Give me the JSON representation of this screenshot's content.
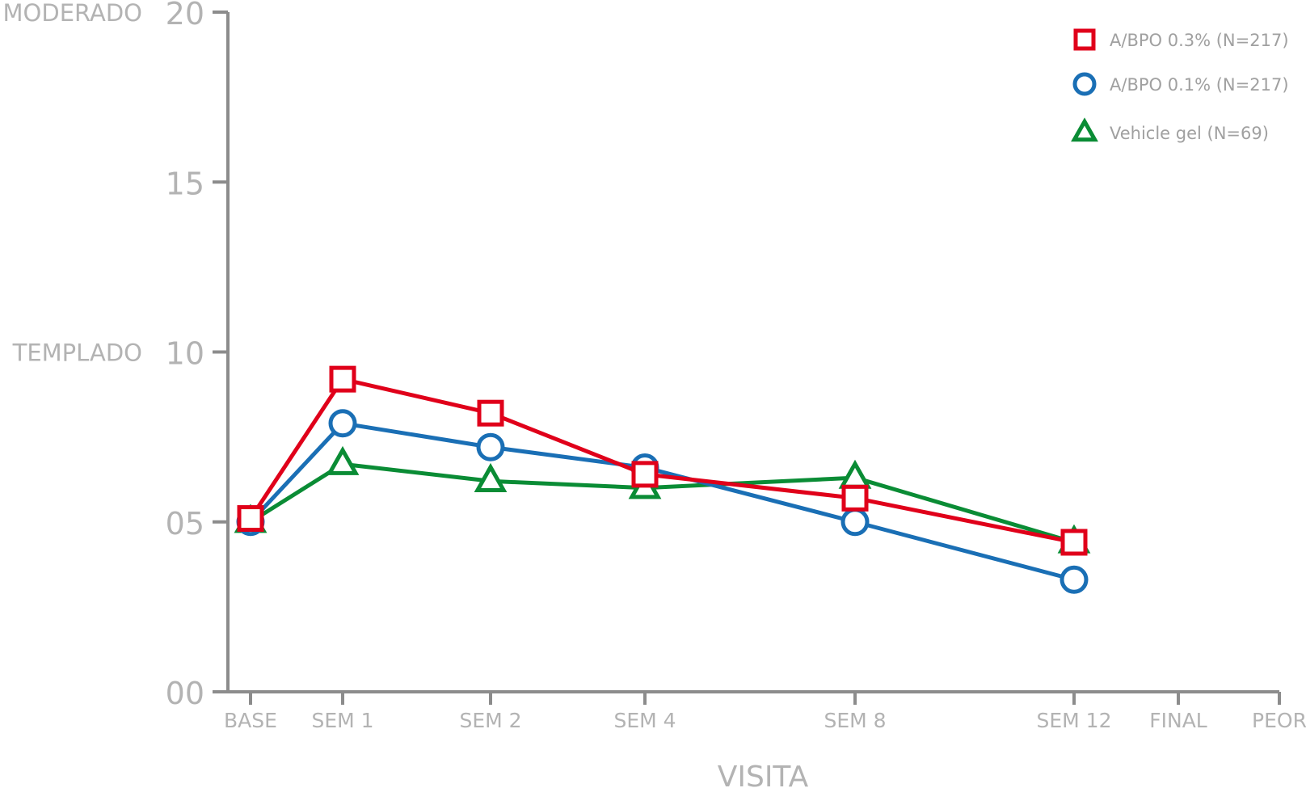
{
  "chart_data": {
    "type": "line",
    "xlabel": "VISITA",
    "categories": [
      "BASE",
      "SEM 1",
      "SEM 2",
      "SEM 4",
      "SEM 8",
      "SEM 12",
      "FINAL",
      "PEOR"
    ],
    "y_ticks": [
      "00",
      "05",
      "10",
      "15",
      "20"
    ],
    "y_tick_values": [
      0,
      5,
      10,
      15,
      20
    ],
    "ylim": [
      0,
      20
    ],
    "y_side_labels": [
      {
        "text": "MODERADO",
        "value": 20
      },
      {
        "text": "TEMPLADO",
        "value": 10
      }
    ],
    "grid": false,
    "legend_position": "top-right",
    "series": [
      {
        "name": "A/BPO 0.3% (N=217)",
        "marker": "square",
        "color": "#e0001a",
        "x": [
          "BASE",
          "SEM 1",
          "SEM 2",
          "SEM 4",
          "SEM 8",
          "SEM 12"
        ],
        "values": [
          5.1,
          9.2,
          8.2,
          6.4,
          5.7,
          4.4
        ]
      },
      {
        "name": "A/BPO 0.1% (N=217)",
        "marker": "circle",
        "color": "#1a6fb5",
        "x": [
          "BASE",
          "SEM 1",
          "SEM 2",
          "SEM 4",
          "SEM 8",
          "SEM 12"
        ],
        "values": [
          5.0,
          7.9,
          7.2,
          6.6,
          5.0,
          3.3
        ]
      },
      {
        "name": "Vehicle gel (N=69)",
        "marker": "triangle",
        "color": "#0a8c35",
        "x": [
          "BASE",
          "SEM 1",
          "SEM 2",
          "SEM 4",
          "SEM 8",
          "SEM 12"
        ],
        "values": [
          5.0,
          6.7,
          6.2,
          6.0,
          6.3,
          4.4
        ]
      }
    ]
  }
}
